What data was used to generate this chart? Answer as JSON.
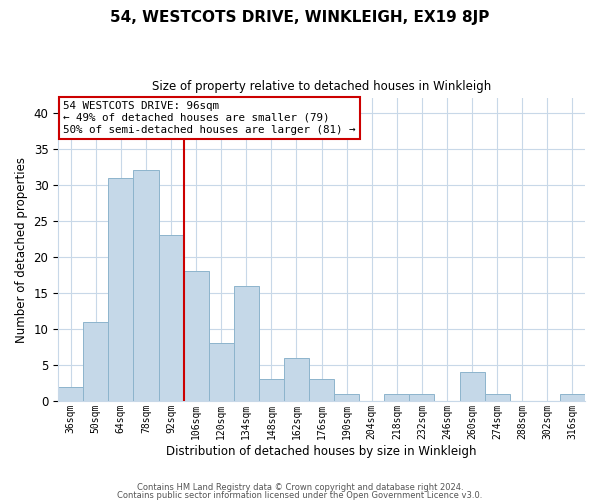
{
  "title": "54, WESTCOTS DRIVE, WINKLEIGH, EX19 8JP",
  "subtitle": "Size of property relative to detached houses in Winkleigh",
  "xlabel": "Distribution of detached houses by size in Winkleigh",
  "ylabel": "Number of detached properties",
  "bin_labels": [
    "36sqm",
    "50sqm",
    "64sqm",
    "78sqm",
    "92sqm",
    "106sqm",
    "120sqm",
    "134sqm",
    "148sqm",
    "162sqm",
    "176sqm",
    "190sqm",
    "204sqm",
    "218sqm",
    "232sqm",
    "246sqm",
    "260sqm",
    "274sqm",
    "288sqm",
    "302sqm",
    "316sqm"
  ],
  "bar_heights": [
    2,
    11,
    31,
    32,
    23,
    18,
    8,
    16,
    3,
    6,
    3,
    1,
    0,
    1,
    1,
    0,
    4,
    1,
    0,
    0,
    1
  ],
  "bar_color": "#c5d8e8",
  "bar_edgecolor": "#8db4cc",
  "ylim": [
    0,
    42
  ],
  "yticks": [
    0,
    5,
    10,
    15,
    20,
    25,
    30,
    35,
    40
  ],
  "vline_color": "#cc0000",
  "annotation_text": "54 WESTCOTS DRIVE: 96sqm\n← 49% of detached houses are smaller (79)\n50% of semi-detached houses are larger (81) →",
  "annotation_box_edgecolor": "#cc0000",
  "footer_line1": "Contains HM Land Registry data © Crown copyright and database right 2024.",
  "footer_line2": "Contains public sector information licensed under the Open Government Licence v3.0.",
  "background_color": "#ffffff",
  "grid_color": "#c8d8e8"
}
